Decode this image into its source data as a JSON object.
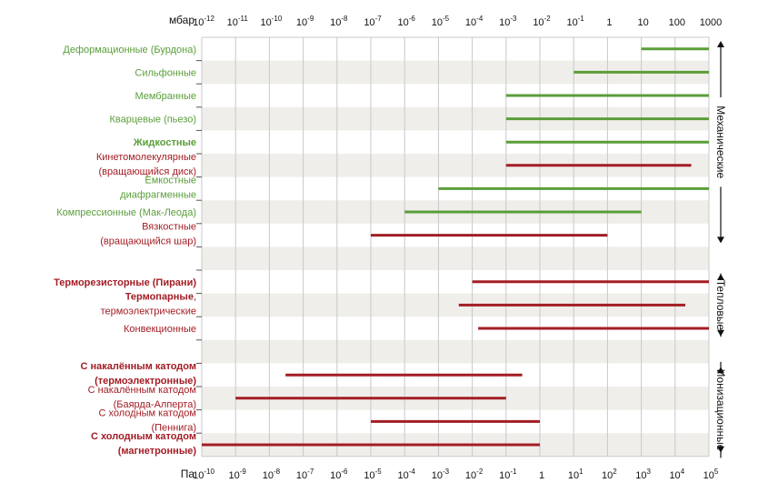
{
  "chart_data": {
    "type": "range_bar",
    "title": "",
    "top_axis": {
      "unit": "мбар",
      "ticks": [
        {
          "base": "10",
          "exp": "-12"
        },
        {
          "base": "10",
          "exp": "-11"
        },
        {
          "base": "10",
          "exp": "-10"
        },
        {
          "base": "10",
          "exp": "-9"
        },
        {
          "base": "10",
          "exp": "-8"
        },
        {
          "base": "10",
          "exp": "-7"
        },
        {
          "base": "10",
          "exp": "-6"
        },
        {
          "base": "10",
          "exp": "-5"
        },
        {
          "base": "10",
          "exp": "-4"
        },
        {
          "base": "10",
          "exp": "-3"
        },
        {
          "base": "10",
          "exp": "-2"
        },
        {
          "base": "10",
          "exp": "-1"
        },
        {
          "base": "1",
          "exp": ""
        },
        {
          "base": "10",
          "exp": ""
        },
        {
          "base": "100",
          "exp": ""
        },
        {
          "base": "1000",
          "exp": ""
        }
      ]
    },
    "bottom_axis": {
      "unit": "Па",
      "scale": "log",
      "range": [
        1e-10,
        100000
      ],
      "ticks": [
        {
          "base": "10",
          "exp": "-10"
        },
        {
          "base": "10",
          "exp": "-9"
        },
        {
          "base": "10",
          "exp": "-8"
        },
        {
          "base": "10",
          "exp": "-7"
        },
        {
          "base": "10",
          "exp": "-6"
        },
        {
          "base": "10",
          "exp": "-5"
        },
        {
          "base": "10",
          "exp": "-4"
        },
        {
          "base": "10",
          "exp": "-3"
        },
        {
          "base": "10",
          "exp": "-2"
        },
        {
          "base": "10",
          "exp": "-1"
        },
        {
          "base": "1",
          "exp": ""
        },
        {
          "base": "10",
          "exp": "1"
        },
        {
          "base": "10",
          "exp": "2"
        },
        {
          "base": "10",
          "exp": "3"
        },
        {
          "base": "10",
          "exp": "4"
        },
        {
          "base": "10",
          "exp": "5"
        }
      ]
    },
    "colors": {
      "green": "#5a9e3a",
      "red": "#a31d24",
      "stripe": "#f0eeea",
      "grid": "#c8c8c8"
    },
    "rows": [
      {
        "lines": [
          {
            "text": "Деформационные (Бурдона)",
            "bold": false
          }
        ],
        "color": "green",
        "min_pa": 1000,
        "max_pa": 100000
      },
      {
        "lines": [
          {
            "text": "Сильфонные",
            "bold": false
          }
        ],
        "color": "green",
        "min_pa": 10,
        "max_pa": 100000
      },
      {
        "lines": [
          {
            "text": "Мембранные",
            "bold": false
          }
        ],
        "color": "green",
        "min_pa": 0.1,
        "max_pa": 100000
      },
      {
        "lines": [
          {
            "text": "Кварцевые (пьезо)",
            "bold": false
          }
        ],
        "color": "green",
        "min_pa": 0.1,
        "max_pa": 100000
      },
      {
        "lines": [
          {
            "text": "Жидкостные",
            "bold": true
          }
        ],
        "color": "green",
        "min_pa": 0.1,
        "max_pa": 100000
      },
      {
        "lines": [
          {
            "text": "Кинетомолекулярные",
            "bold": false
          },
          {
            "text": "(вращающийся диск)",
            "bold": false
          }
        ],
        "color": "red",
        "min_pa": 0.1,
        "max_pa": 30000
      },
      {
        "lines": [
          {
            "text": "Емкостные",
            "bold": false
          },
          {
            "text": "диафрагменные",
            "bold": false
          }
        ],
        "color": "green",
        "min_pa": 0.001,
        "max_pa": 100000
      },
      {
        "lines": [
          {
            "text": "Компрессионные (Мак-Леода)",
            "bold": false
          }
        ],
        "color": "green",
        "min_pa": 0.0001,
        "max_pa": 1000
      },
      {
        "lines": [
          {
            "text": "Вязкостные",
            "bold": false
          },
          {
            "text": "(вращающийся шар)",
            "bold": false
          }
        ],
        "color": "red",
        "min_pa": 1e-05,
        "max_pa": 100
      },
      {
        "lines": [],
        "color": "",
        "min_pa": null,
        "max_pa": null
      },
      {
        "lines": [
          {
            "text": "Терморезисторные (Пирани)",
            "bold": true
          }
        ],
        "color": "red",
        "min_pa": 0.01,
        "max_pa": 100000
      },
      {
        "lines": [
          {
            "text": "Термопарные",
            "bold": true,
            "suffix": ","
          },
          {
            "text": "термоэлектрические",
            "bold": false
          }
        ],
        "color": "red",
        "min_pa": 0.004,
        "max_pa": 20000
      },
      {
        "lines": [
          {
            "text": "Конвекционные",
            "bold": false
          }
        ],
        "color": "red",
        "min_pa": 0.015,
        "max_pa": 100000
      },
      {
        "lines": [],
        "color": "",
        "min_pa": null,
        "max_pa": null
      },
      {
        "lines": [
          {
            "text": "С накалённым катодом",
            "bold": true
          },
          {
            "text": "(термоэлектронные)",
            "bold": true
          }
        ],
        "color": "red",
        "min_pa": 3e-08,
        "max_pa": 0.3
      },
      {
        "lines": [
          {
            "text": "С накалённым катодом",
            "bold": false
          },
          {
            "text": "(Баярда-Алперта)",
            "bold": false
          }
        ],
        "color": "red",
        "min_pa": 1e-09,
        "max_pa": 0.1
      },
      {
        "lines": [
          {
            "text": "С холодным катодом",
            "bold": false
          },
          {
            "text": "(Пеннига)",
            "bold": false
          }
        ],
        "color": "red",
        "min_pa": 1e-05,
        "max_pa": 1
      },
      {
        "lines": [
          {
            "text": "С холодным катодом",
            "bold": true
          },
          {
            "text": "(магнетронные)",
            "bold": true
          }
        ],
        "color": "red",
        "min_pa": 1e-10,
        "max_pa": 1
      }
    ],
    "groups": [
      {
        "label": "Механические",
        "from_row": 0,
        "to_row": 8
      },
      {
        "label": "Тепловые",
        "from_row": 10,
        "to_row": 12
      },
      {
        "label": "Ионизационные",
        "from_row": 14,
        "to_row": 17
      }
    ]
  }
}
